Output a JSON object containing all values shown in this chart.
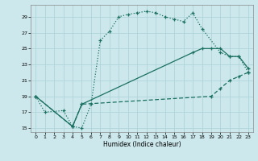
{
  "xlabel": "Humidex (Indice chaleur)",
  "background_color": "#cce8ec",
  "grid_color": "#aad0d8",
  "line_color": "#1a7060",
  "ylim": [
    14.5,
    30.5
  ],
  "xlim": [
    -0.5,
    23.5
  ],
  "yticks": [
    15,
    17,
    19,
    21,
    23,
    25,
    27,
    29
  ],
  "xticks": [
    0,
    1,
    2,
    3,
    4,
    5,
    6,
    7,
    8,
    9,
    10,
    11,
    12,
    13,
    14,
    15,
    16,
    17,
    18,
    19,
    20,
    21,
    22,
    23
  ],
  "curve1_x": [
    0,
    1,
    3,
    4,
    5,
    6,
    7,
    8,
    9,
    10,
    11,
    12,
    13,
    14,
    15,
    16,
    17,
    18,
    20,
    21,
    22,
    23
  ],
  "curve1_y": [
    19,
    17,
    17.2,
    15.2,
    15.0,
    18.0,
    26.0,
    27.2,
    29.0,
    29.3,
    29.5,
    29.7,
    29.5,
    29.0,
    28.7,
    28.4,
    29.5,
    27.5,
    24.5,
    24.0,
    24.0,
    22.0
  ],
  "curve1_style": "dotted",
  "curve2_x": [
    0,
    4,
    5,
    17,
    18,
    19,
    20,
    21,
    22,
    23
  ],
  "curve2_y": [
    19,
    15.2,
    18.0,
    24.5,
    25.0,
    25.0,
    25.0,
    24.0,
    24.0,
    22.5
  ],
  "curve2_style": "solid",
  "curve3_x": [
    0,
    4,
    5,
    19,
    20,
    21,
    22,
    23
  ],
  "curve3_y": [
    19,
    15.2,
    18.0,
    19.0,
    20.0,
    21.0,
    21.5,
    22.0
  ],
  "curve3_style": "dashed"
}
